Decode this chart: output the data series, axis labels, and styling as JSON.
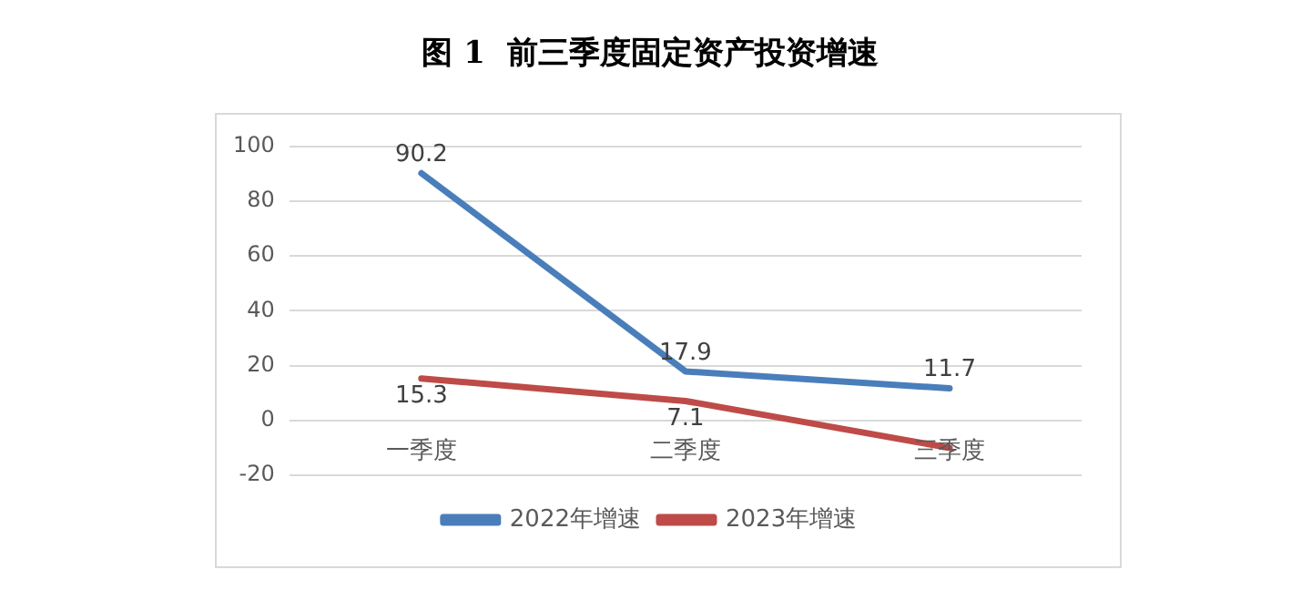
{
  "chart_data": {
    "type": "line",
    "title": "图 1  前三季度固定资产投资增速",
    "categories": [
      "一季度",
      "二季度",
      "三季度"
    ],
    "series": [
      {
        "name": "2022年增速",
        "color": "#4a7ebb",
        "values": [
          90.2,
          17.9,
          11.7
        ],
        "value_labels": [
          "90.2",
          "17.9",
          "11.7"
        ]
      },
      {
        "name": "2023年增速",
        "color": "#be4b48",
        "values": [
          15.3,
          7.1,
          -10
        ],
        "value_labels": [
          "15.3",
          "7.1",
          null
        ]
      }
    ],
    "ylim": [
      -20,
      100
    ],
    "yticks": [
      -20,
      0,
      20,
      40,
      60,
      80,
      100
    ],
    "grid": "y",
    "legend": "bottom",
    "marker": "none",
    "line_style": "solid"
  }
}
